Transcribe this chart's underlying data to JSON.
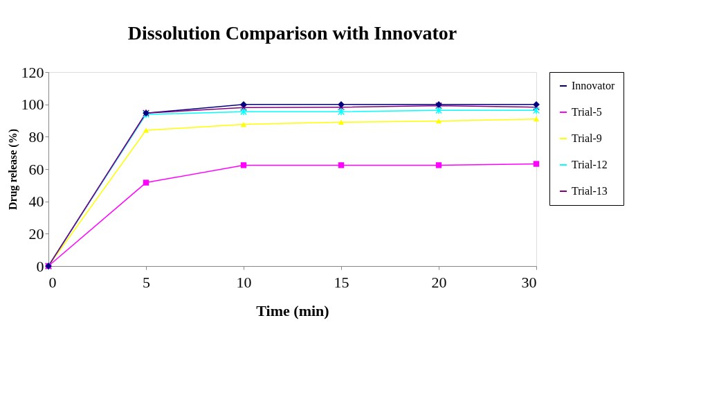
{
  "chart_data": {
    "type": "line",
    "title": "Dissolution Comparison with Innovator",
    "xlabel": "Time (min)",
    "ylabel": "Drug release (%)",
    "categories": [
      "0",
      "5",
      "10",
      "15",
      "20",
      "30"
    ],
    "ylim": [
      0,
      120
    ],
    "yticks": [
      0,
      20,
      40,
      60,
      80,
      100,
      120
    ],
    "grid": false,
    "legend": "right",
    "line_style": "solid",
    "series": [
      {
        "name": "Innovator",
        "color": "#000080",
        "marker": "diamond",
        "values": [
          0,
          94.6,
          100,
          100,
          100,
          100
        ]
      },
      {
        "name": "Trial-5",
        "color": "#ff00ff",
        "marker": "square",
        "values": [
          0,
          51.6,
          62.4,
          62.4,
          62.4,
          63.2
        ]
      },
      {
        "name": "Trial-9",
        "color": "#ffff00",
        "marker": "triangle",
        "values": [
          0,
          84,
          87.6,
          89,
          89.7,
          91
        ]
      },
      {
        "name": "Trial-12",
        "color": "#00ffff",
        "marker": "cross",
        "values": [
          0,
          93.8,
          95.5,
          95.5,
          96.3,
          96.3
        ]
      },
      {
        "name": "Trial-13",
        "color": "#800080",
        "marker": "cross",
        "values": [
          0,
          94.6,
          98,
          98.3,
          99.2,
          98.3
        ]
      }
    ]
  }
}
